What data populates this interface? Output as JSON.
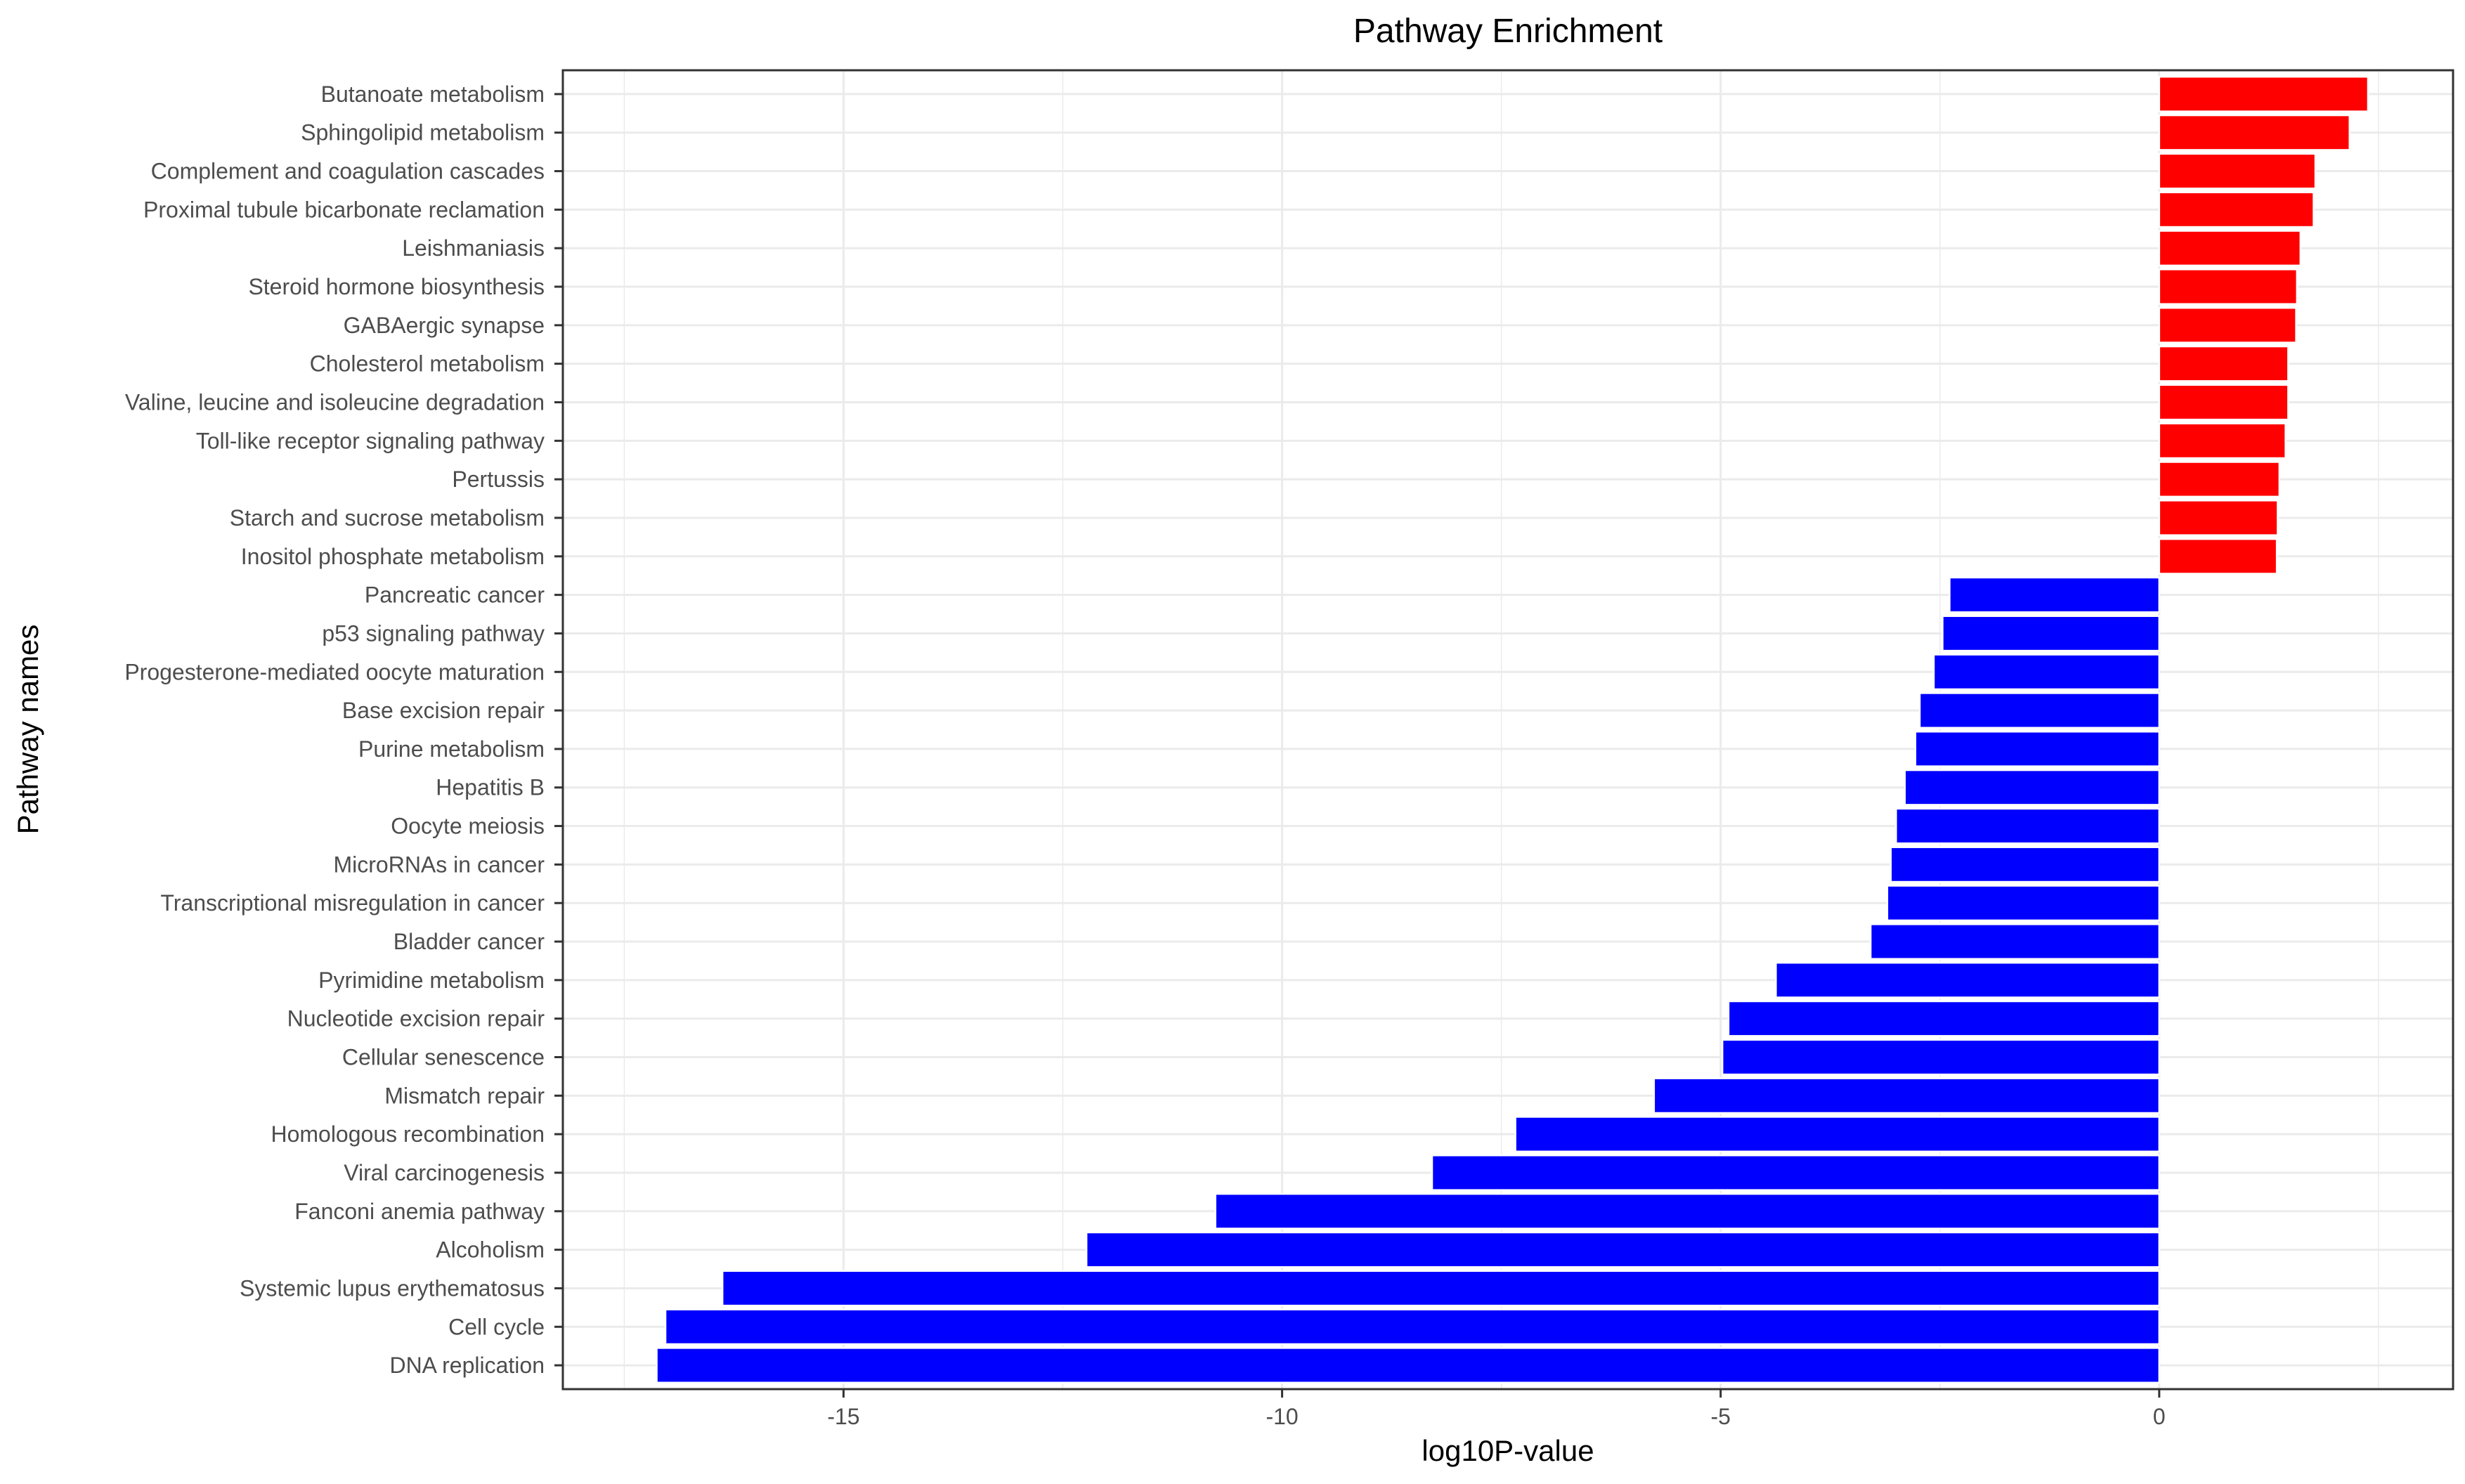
{
  "chart_data": {
    "type": "bar",
    "orientation": "horizontal",
    "title": "Pathway Enrichment",
    "xlabel": "log10P-value",
    "ylabel": "Pathway names",
    "xlim": [
      -18.2,
      3.35
    ],
    "xticks": [
      -15,
      -10,
      -5,
      0
    ],
    "xtick_labels": [
      "-15",
      "-10",
      "-5",
      "0"
    ],
    "grid": true,
    "legend": "none",
    "colors": {
      "positive": "#ff0000",
      "negative": "#0000ff",
      "bar_outline": "#ffffff",
      "grid": "#ebebeb",
      "panel_border": "#333333"
    },
    "categories": [
      "Butanoate metabolism",
      "Sphingolipid metabolism",
      "Complement and coagulation cascades",
      "Proximal tubule bicarbonate reclamation",
      "Leishmaniasis",
      "Steroid hormone biosynthesis",
      "GABAergic synapse",
      "Cholesterol metabolism",
      "Valine, leucine and isoleucine degradation",
      "Toll-like receptor signaling pathway",
      "Pertussis",
      "Starch and sucrose metabolism",
      "Inositol phosphate metabolism",
      "Pancreatic cancer",
      "p53 signaling pathway",
      "Progesterone-mediated oocyte maturation",
      "Base excision repair",
      "Purine metabolism",
      "Hepatitis B",
      "Oocyte meiosis",
      "MicroRNAs in cancer",
      "Transcriptional misregulation in cancer",
      "Bladder cancer",
      "Pyrimidine metabolism",
      "Nucleotide excision repair",
      "Cellular senescence",
      "Mismatch repair",
      "Homologous recombination",
      "Viral carcinogenesis",
      "Fanconi anemia pathway",
      "Alcoholism",
      "Systemic lupus erythematosus",
      "Cell cycle",
      "DNA replication"
    ],
    "values": [
      2.38,
      2.17,
      1.78,
      1.76,
      1.61,
      1.57,
      1.56,
      1.47,
      1.47,
      1.44,
      1.37,
      1.35,
      1.34,
      -2.39,
      -2.47,
      -2.57,
      -2.73,
      -2.78,
      -2.9,
      -3.0,
      -3.06,
      -3.1,
      -3.29,
      -4.37,
      -4.91,
      -4.98,
      -5.76,
      -7.34,
      -8.29,
      -10.76,
      -12.23,
      -16.38,
      -17.03,
      -17.13
    ]
  }
}
